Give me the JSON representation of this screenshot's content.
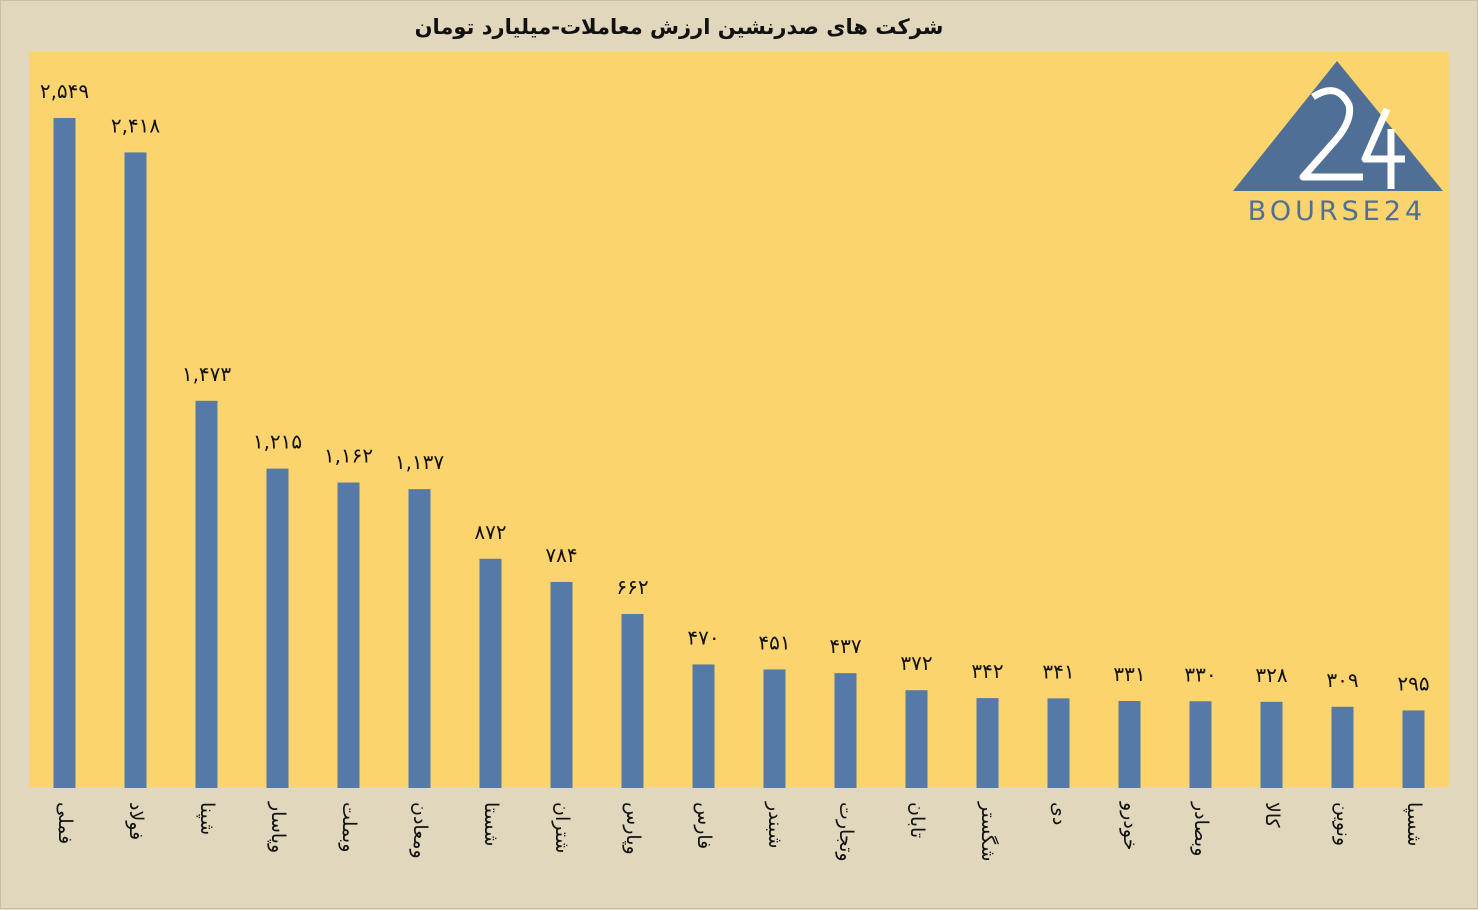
{
  "chart_data": {
    "type": "bar",
    "title": "شرکت های صدرنشین ارزش معاملات-میلیارد تومان",
    "categories": [
      "فملی",
      "فولاد",
      "شپنا",
      "وپاسار",
      "وبملت",
      "ومعادن",
      "شستا",
      "شتران",
      "وپارس",
      "فارس",
      "شبندر",
      "وتجارت",
      "تابان",
      "شگستر",
      "دی",
      "خودرو",
      "وبصادر",
      "کالا",
      "ونوین",
      "شسپا"
    ],
    "values": [
      2549,
      2418,
      1473,
      1215,
      1162,
      1137,
      872,
      784,
      662,
      470,
      451,
      437,
      372,
      342,
      341,
      331,
      330,
      328,
      309,
      295
    ],
    "value_labels": [
      "۲,۵۴۹",
      "۲,۴۱۸",
      "۱,۴۷۳",
      "۱,۲۱۵",
      "۱,۱۶۲",
      "۱,۱۳۷",
      "۸۷۲",
      "۷۸۴",
      "۶۶۲",
      "۴۷۰",
      "۴۵۱",
      "۴۳۷",
      "۳۷۲",
      "۳۴۲",
      "۳۴۱",
      "۳۳۱",
      "۳۳۰",
      "۳۲۸",
      "۳۰۹",
      "۲۹۵"
    ],
    "ylim": [
      0,
      2800
    ],
    "grid": false,
    "bar_color": "#557aa8",
    "plot_background": "#fcd46d"
  },
  "logo": {
    "text": "BOURSE24",
    "mark_text": "24",
    "color": "#4f6f96"
  }
}
